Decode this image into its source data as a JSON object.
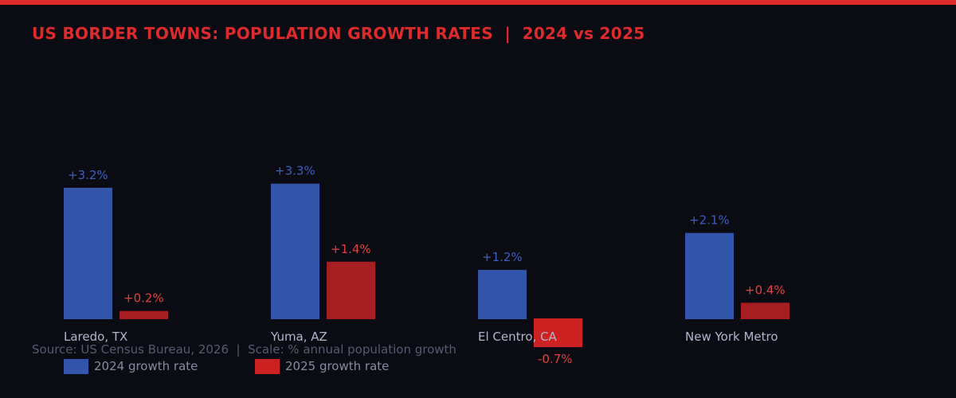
{
  "title": "US BORDER TOWNS: POPULATION GROWTH RATES  |  2024 vs 2025",
  "source": "Source: US Census Bureau, 2026  |  Scale: % annual population growth",
  "colors": {
    "accent": "#dd2a2a",
    "series_2024": "#3355aa",
    "series_2025": "#a61e22",
    "series_2025_negative": "#cc2222",
    "label_2024": "#3f5fbf",
    "label_2025": "#e04040",
    "category_text": "#b4b4cc"
  },
  "chart_data": {
    "type": "bar",
    "title": "US BORDER TOWNS: POPULATION GROWTH RATES  |  2024 vs 2025",
    "categories": [
      "Laredo, TX",
      "Yuma, AZ",
      "El Centro, CA",
      "New York Metro"
    ],
    "series": [
      {
        "name": "2024 growth rate",
        "values": [
          3.2,
          3.3,
          1.2,
          2.1
        ],
        "labels": [
          "+3.2%",
          "+3.3%",
          "+1.2%",
          "+2.1%"
        ]
      },
      {
        "name": "2025 growth rate",
        "values": [
          0.2,
          1.4,
          -0.7,
          0.4
        ],
        "labels": [
          "+0.2%",
          "+1.4%",
          "-0.7%",
          "+0.4%"
        ]
      }
    ],
    "ylabel": "% annual population growth",
    "grid": false,
    "legend": "bottom-left"
  },
  "legend": [
    {
      "label": "2024 growth rate",
      "color": "#3355aa"
    },
    {
      "label": "2025 growth rate",
      "color": "#cc2222"
    }
  ]
}
